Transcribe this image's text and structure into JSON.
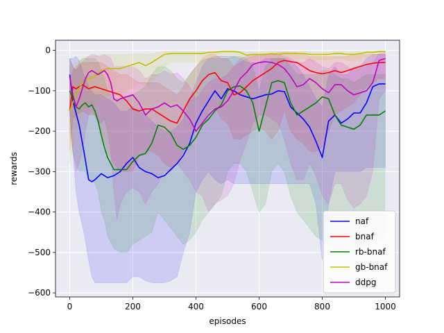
{
  "chart_data": {
    "type": "line",
    "xlabel": "episodes",
    "ylabel": "rewards",
    "xlim": [
      -45,
      1045
    ],
    "ylim": [
      -610,
      25
    ],
    "xticks": [
      0,
      200,
      400,
      600,
      800,
      1000
    ],
    "yticks": [
      0,
      -100,
      -200,
      -300,
      -400,
      -500,
      -600
    ],
    "grid": true,
    "legend_position": "lower-right",
    "background": "#eaeaf2",
    "series": [
      {
        "name": "naf",
        "color": "#0000ff",
        "x": [
          0,
          10,
          20,
          30,
          45,
          60,
          70,
          80,
          100,
          120,
          140,
          160,
          180,
          200,
          220,
          240,
          260,
          280,
          300,
          320,
          340,
          360,
          380,
          400,
          420,
          440,
          460,
          480,
          500,
          520,
          540,
          560,
          580,
          600,
          620,
          640,
          660,
          680,
          700,
          720,
          740,
          760,
          780,
          800,
          820,
          840,
          860,
          880,
          900,
          920,
          940,
          960,
          980,
          1000
        ],
        "y": [
          -60,
          -125,
          -155,
          -185,
          -250,
          -320,
          -325,
          -320,
          -305,
          -315,
          -310,
          -300,
          -280,
          -265,
          -290,
          -300,
          -305,
          -315,
          -310,
          -295,
          -280,
          -260,
          -230,
          -180,
          -150,
          -125,
          -100,
          -120,
          -95,
          -100,
          -110,
          -115,
          -120,
          -115,
          -110,
          -108,
          -100,
          -102,
          -140,
          -155,
          -170,
          -190,
          -225,
          -265,
          -175,
          -160,
          -180,
          -170,
          -155,
          -155,
          -130,
          -90,
          -83,
          -83
        ],
        "upper": [
          -20,
          -20,
          -15,
          -25,
          -60,
          -90,
          -100,
          -110,
          -110,
          -120,
          -130,
          -150,
          -150,
          -140,
          -150,
          -160,
          -175,
          -190,
          -200,
          -200,
          -190,
          -170,
          -120,
          -80,
          -40,
          -20,
          -15,
          -15,
          -15,
          -15,
          -20,
          -30,
          -30,
          -30,
          -20,
          -20,
          -20,
          -20,
          -25,
          -40,
          -60,
          -90,
          -120,
          -140,
          -60,
          -40,
          -60,
          -60,
          -40,
          -40,
          -20,
          -10,
          -10,
          -10
        ],
        "lower": [
          -150,
          -250,
          -350,
          -400,
          -450,
          -520,
          -560,
          -575,
          -575,
          -575,
          -575,
          -575,
          -575,
          -560,
          -560,
          -570,
          -575,
          -575,
          -575,
          -570,
          -560,
          -500,
          -450,
          -350,
          -320,
          -300,
          -320,
          -330,
          -320,
          -330,
          -330,
          -330,
          -330,
          -330,
          -330,
          -330,
          -330,
          -330,
          -330,
          -330,
          -330,
          -330,
          -380,
          -520,
          -380,
          -300,
          -300,
          -300,
          -300,
          -300,
          -290,
          -290,
          -290,
          -290
        ]
      },
      {
        "name": "bnaf",
        "color": "#ff0000",
        "x": [
          0,
          10,
          20,
          40,
          60,
          80,
          100,
          120,
          140,
          160,
          180,
          200,
          220,
          240,
          260,
          280,
          300,
          320,
          340,
          360,
          380,
          400,
          420,
          440,
          460,
          480,
          500,
          520,
          540,
          560,
          580,
          600,
          620,
          640,
          660,
          680,
          700,
          720,
          740,
          760,
          780,
          800,
          820,
          840,
          860,
          880,
          900,
          920,
          940,
          960,
          980,
          1000
        ],
        "y": [
          -150,
          -90,
          -95,
          -85,
          -95,
          -90,
          -95,
          -100,
          -105,
          -110,
          -125,
          -145,
          -150,
          -145,
          -145,
          -155,
          -165,
          -175,
          -180,
          -150,
          -120,
          -100,
          -75,
          -60,
          -55,
          -75,
          -80,
          -110,
          -105,
          -90,
          -75,
          -65,
          -55,
          -45,
          -30,
          -25,
          -28,
          -30,
          -40,
          -50,
          -55,
          -58,
          -55,
          -50,
          -55,
          -50,
          -45,
          -40,
          -35,
          -32,
          -30,
          -30
        ],
        "upper": [
          -80,
          -50,
          -40,
          -30,
          -30,
          -30,
          -30,
          -40,
          -50,
          -60,
          -60,
          -70,
          -80,
          -80,
          -80,
          -80,
          -90,
          -100,
          -110,
          -90,
          -60,
          -40,
          -20,
          -10,
          -10,
          -20,
          -20,
          -40,
          -30,
          -20,
          -15,
          -10,
          -10,
          -10,
          -5,
          -5,
          -5,
          -5,
          -10,
          -15,
          -15,
          -15,
          -15,
          -15,
          -15,
          -15,
          -10,
          -10,
          -10,
          -10,
          -10,
          -10
        ],
        "lower": [
          -250,
          -170,
          -160,
          -150,
          -160,
          -160,
          -200,
          -250,
          -280,
          -300,
          -300,
          -300,
          -260,
          -250,
          -250,
          -260,
          -280,
          -290,
          -280,
          -250,
          -220,
          -200,
          -180,
          -150,
          -140,
          -170,
          -180,
          -220,
          -220,
          -210,
          -200,
          -190,
          -200,
          -220,
          -200,
          -150,
          -200,
          -220,
          -230,
          -250,
          -250,
          -240,
          -200,
          -160,
          -150,
          -140,
          -130,
          -110,
          -90,
          -80,
          -70,
          -70
        ]
      },
      {
        "name": "rb-bnaf",
        "color": "#008000",
        "x": [
          0,
          10,
          20,
          30,
          40,
          50,
          60,
          70,
          80,
          90,
          100,
          110,
          120,
          140,
          160,
          180,
          200,
          220,
          240,
          260,
          280,
          300,
          320,
          340,
          360,
          380,
          400,
          420,
          440,
          460,
          480,
          500,
          520,
          540,
          560,
          580,
          600,
          620,
          640,
          660,
          680,
          700,
          720,
          740,
          760,
          780,
          800,
          820,
          840,
          860,
          880,
          900,
          920,
          940,
          960,
          980,
          1000
        ],
        "y": [
          -100,
          -120,
          -140,
          -145,
          -135,
          -130,
          -140,
          -135,
          -150,
          -175,
          -210,
          -240,
          -265,
          -295,
          -295,
          -295,
          -275,
          -260,
          -255,
          -230,
          -185,
          -190,
          -205,
          -235,
          -245,
          -235,
          -215,
          -185,
          -170,
          -150,
          -135,
          -100,
          -90,
          -88,
          -100,
          -130,
          -200,
          -140,
          -80,
          -75,
          -80,
          -130,
          -160,
          -150,
          -140,
          -130,
          -115,
          -120,
          -160,
          -185,
          -190,
          -195,
          -185,
          -160,
          -160,
          -160,
          -150
        ],
        "upper": [
          -20,
          -40,
          -50,
          -30,
          -20,
          -20,
          -20,
          -20,
          -20,
          -30,
          -50,
          -70,
          -100,
          -120,
          -120,
          -120,
          -110,
          -100,
          -90,
          -60,
          -40,
          -40,
          -50,
          -70,
          -80,
          -60,
          -40,
          -25,
          -20,
          -20,
          -20,
          -20,
          -15,
          -15,
          -20,
          -40,
          -100,
          -40,
          -20,
          -20,
          -20,
          -40,
          -60,
          -60,
          -60,
          -60,
          -50,
          -50,
          -60,
          -70,
          -70,
          -80,
          -70,
          -60,
          -60,
          -60,
          -60
        ],
        "lower": [
          -200,
          -250,
          -280,
          -300,
          -300,
          -300,
          -320,
          -320,
          -330,
          -350,
          -400,
          -420,
          -460,
          -490,
          -500,
          -500,
          -480,
          -470,
          -460,
          -450,
          -400,
          -420,
          -440,
          -460,
          -480,
          -470,
          -450,
          -420,
          -400,
          -380,
          -360,
          -300,
          -280,
          -280,
          -300,
          -350,
          -400,
          -380,
          -300,
          -280,
          -300,
          -360,
          -400,
          -420,
          -440,
          -460,
          -470,
          -480,
          -490,
          -500,
          -500,
          -500,
          -490,
          -480,
          -470,
          -470,
          -460
        ]
      },
      {
        "name": "gb-bnaf",
        "color": "#bfbf00",
        "x": [
          0,
          20,
          40,
          60,
          80,
          100,
          120,
          140,
          160,
          180,
          200,
          220,
          240,
          260,
          280,
          300,
          320,
          340,
          360,
          380,
          400,
          420,
          440,
          460,
          480,
          500,
          520,
          540,
          560,
          580,
          600,
          620,
          640,
          660,
          680,
          700,
          720,
          740,
          760,
          780,
          800,
          820,
          840,
          860,
          880,
          900,
          920,
          940,
          960,
          980,
          1000
        ],
        "y": [
          -150,
          -110,
          -80,
          -70,
          -65,
          -50,
          -45,
          -45,
          -45,
          -40,
          -35,
          -30,
          -38,
          -30,
          -20,
          -10,
          -8,
          -8,
          -8,
          -8,
          -8,
          -8,
          -5,
          -5,
          -3,
          -3,
          -3,
          -5,
          -12,
          -10,
          -10,
          -10,
          -8,
          -10,
          -8,
          -8,
          -8,
          -8,
          -10,
          -10,
          -10,
          -10,
          -8,
          -8,
          -10,
          -10,
          -8,
          -5,
          -5,
          -3,
          -3
        ],
        "upper": [
          -40,
          -30,
          -20,
          -15,
          -15,
          -10,
          -10,
          -10,
          -10,
          -10,
          -10,
          -8,
          -10,
          -8,
          -5,
          -3,
          -3,
          -3,
          -3,
          -3,
          -3,
          -3,
          -2,
          -2,
          -1,
          -1,
          -1,
          -2,
          -5,
          -4,
          -4,
          -4,
          -3,
          -4,
          -3,
          -3,
          -3,
          -3,
          -4,
          -4,
          -4,
          -4,
          -3,
          -3,
          -4,
          -4,
          -3,
          -2,
          -2,
          -1,
          -1
        ],
        "lower": [
          -280,
          -200,
          -150,
          -140,
          -130,
          -120,
          -110,
          -110,
          -110,
          -100,
          -90,
          -80,
          -90,
          -80,
          -60,
          -40,
          -30,
          -30,
          -30,
          -30,
          -30,
          -30,
          -20,
          -20,
          -15,
          -15,
          -15,
          -20,
          -30,
          -25,
          -25,
          -25,
          -20,
          -25,
          -20,
          -20,
          -20,
          -20,
          -25,
          -25,
          -25,
          -25,
          -20,
          -20,
          -25,
          -25,
          -20,
          -15,
          -15,
          -10,
          -10
        ]
      },
      {
        "name": "ddpg",
        "color": "#bf00bf",
        "x": [
          0,
          10,
          20,
          30,
          40,
          50,
          60,
          70,
          80,
          90,
          100,
          110,
          120,
          130,
          140,
          150,
          160,
          180,
          200,
          220,
          240,
          260,
          280,
          300,
          320,
          340,
          360,
          380,
          400,
          420,
          440,
          460,
          480,
          500,
          520,
          540,
          560,
          580,
          600,
          620,
          640,
          660,
          680,
          700,
          720,
          740,
          760,
          780,
          800,
          820,
          840,
          860,
          880,
          900,
          920,
          940,
          960,
          980,
          1000
        ],
        "y": [
          -65,
          -110,
          -140,
          -120,
          -95,
          -70,
          -55,
          -50,
          -55,
          -60,
          -55,
          -50,
          -60,
          -80,
          -120,
          -125,
          -120,
          -115,
          -110,
          -130,
          -160,
          -145,
          -140,
          -130,
          -140,
          -135,
          -150,
          -170,
          -200,
          -180,
          -160,
          -145,
          -140,
          -125,
          -100,
          -70,
          -55,
          -35,
          -30,
          -28,
          -30,
          -35,
          -45,
          -65,
          -90,
          -85,
          -70,
          -80,
          -95,
          -105,
          -85,
          -85,
          -100,
          -110,
          -105,
          -100,
          -80,
          -25,
          -20
        ],
        "upper": [
          -20,
          -40,
          -50,
          -40,
          -30,
          -20,
          -15,
          -10,
          -10,
          -15,
          -15,
          -10,
          -15,
          -20,
          -40,
          -40,
          -40,
          -40,
          -40,
          -50,
          -70,
          -60,
          -60,
          -50,
          -60,
          -55,
          -70,
          -90,
          -120,
          -100,
          -80,
          -70,
          -70,
          -60,
          -40,
          -20,
          -15,
          -10,
          -10,
          -8,
          -10,
          -10,
          -15,
          -20,
          -30,
          -30,
          -20,
          -30,
          -40,
          -45,
          -30,
          -30,
          -40,
          -50,
          -45,
          -40,
          -30,
          -8,
          -5
        ],
        "lower": [
          -150,
          -250,
          -300,
          -280,
          -250,
          -200,
          -160,
          -150,
          -160,
          -180,
          -180,
          -170,
          -200,
          -250,
          -350,
          -420,
          -380,
          -350,
          -340,
          -350,
          -380,
          -350,
          -330,
          -300,
          -300,
          -280,
          -300,
          -320,
          -350,
          -360,
          -400,
          -380,
          -370,
          -360,
          -330,
          -270,
          -230,
          -180,
          -160,
          -160,
          -170,
          -180,
          -220,
          -280,
          -320,
          -320,
          -280,
          -310,
          -360,
          -380,
          -330,
          -330,
          -370,
          -390,
          -380,
          -360,
          -300,
          -120,
          -100
        ]
      }
    ]
  }
}
